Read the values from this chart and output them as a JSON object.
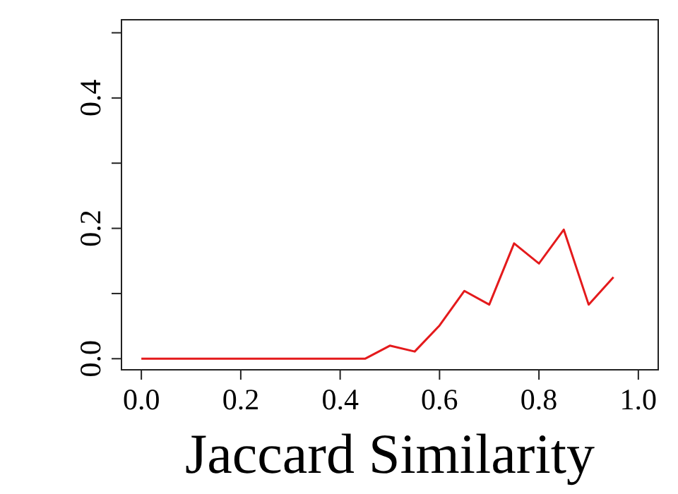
{
  "chart_data": {
    "type": "line",
    "xlabel": "Jaccard Similarity",
    "x": [
      0,
      0.05,
      0.1,
      0.15,
      0.2,
      0.25,
      0.3,
      0.35,
      0.4,
      0.45,
      0.5,
      0.55,
      0.6,
      0.65,
      0.7,
      0.75,
      0.8,
      0.85,
      0.9,
      0.95
    ],
    "series": [
      {
        "color": "#e41a1c",
        "values": [
          0,
          0,
          0,
          0,
          0,
          0,
          0,
          0,
          0,
          0,
          0.02,
          0.011,
          0.051,
          0.104,
          0.083,
          0.177,
          0.146,
          0.198,
          0.083,
          0.125
        ]
      }
    ],
    "xlim": [
      -0.04,
      1.04
    ],
    "ylim": [
      -0.017,
      0.52
    ],
    "xticks": [
      {
        "value": 0,
        "label": "0.0"
      },
      {
        "value": 0.2,
        "label": "0.2"
      },
      {
        "value": 0.4,
        "label": "0.4"
      },
      {
        "value": 0.6,
        "label": "0.6"
      },
      {
        "value": 0.8,
        "label": "0.8"
      },
      {
        "value": 1,
        "label": "1.0"
      }
    ],
    "yticks": [
      {
        "value": 0,
        "label": "0.0"
      },
      {
        "value": 0.1,
        "label": null
      },
      {
        "value": 0.2,
        "label": "0.2"
      },
      {
        "value": 0.3,
        "label": null
      },
      {
        "value": 0.4,
        "label": "0.4"
      },
      {
        "value": 0.5,
        "label": null
      }
    ],
    "grid": false,
    "marker": "none",
    "line_style": "solid"
  }
}
